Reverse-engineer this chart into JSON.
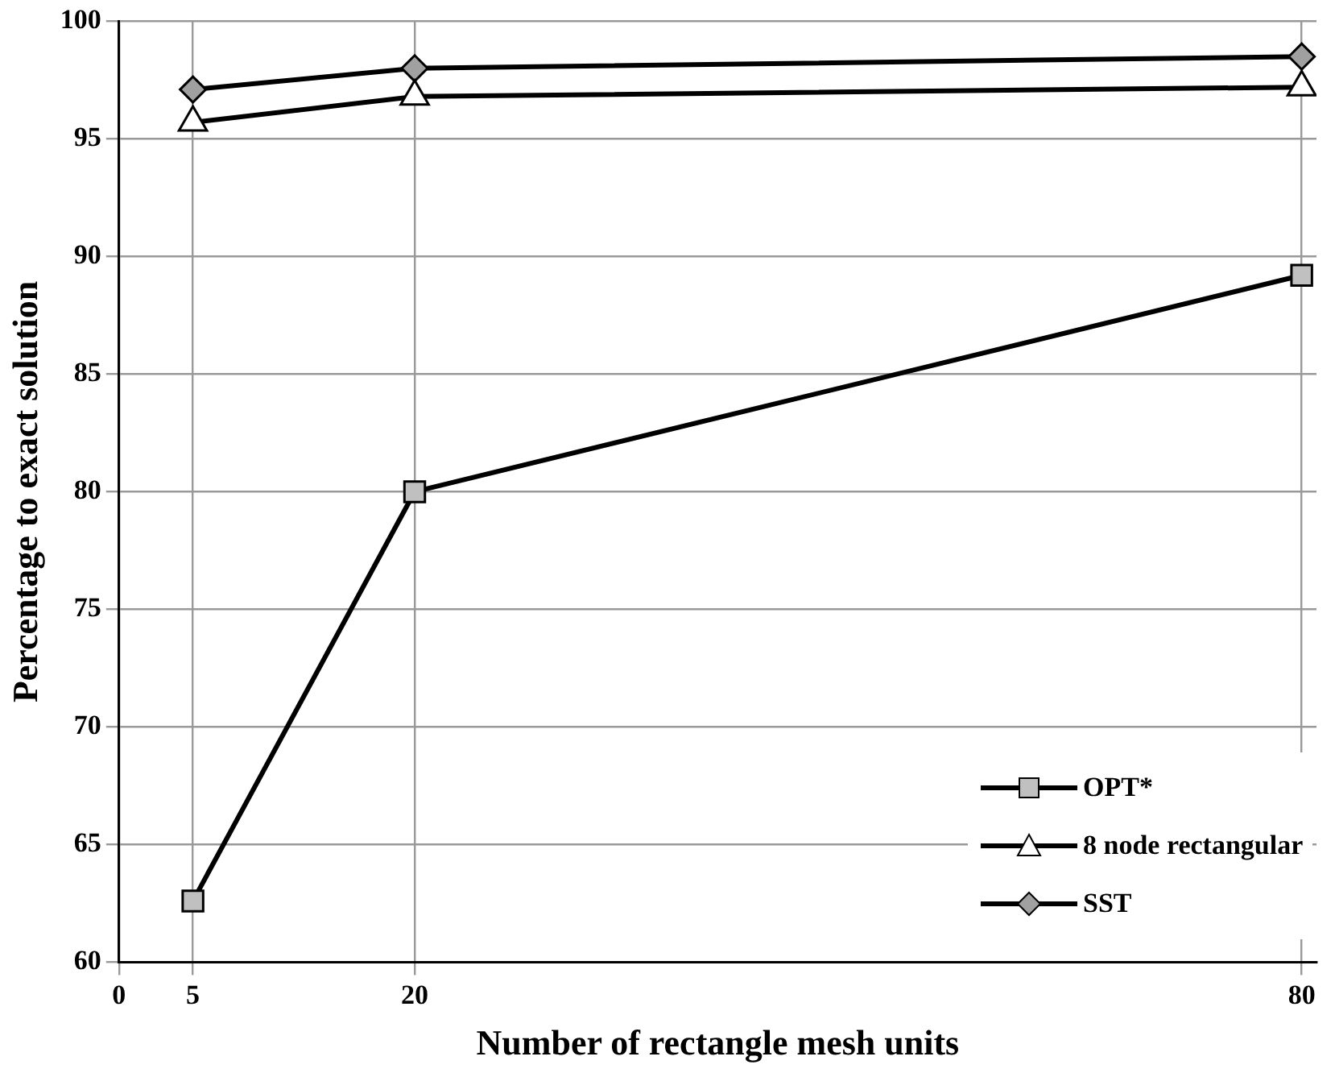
{
  "chart_data": {
    "type": "line",
    "xlabel": "Number of rectangle mesh units",
    "ylabel": "Percentage to exact solution",
    "x": [
      5,
      20,
      80
    ],
    "xlim": [
      0,
      81
    ],
    "xticks": [
      0,
      5,
      20,
      80
    ],
    "ylim": [
      60,
      100
    ],
    "yticks": [
      60,
      65,
      70,
      75,
      80,
      85,
      90,
      95,
      100
    ],
    "series": [
      {
        "name": "OPT*",
        "color": "#c0c0c0",
        "marker": "square",
        "values": [
          62.6,
          80,
          89.2
        ]
      },
      {
        "name": "8 node rectangular",
        "color": "#ffffff",
        "marker": "triangle",
        "values": [
          95.7,
          96.8,
          97.2
        ]
      },
      {
        "name": "SST",
        "color": "#a0a0a0",
        "marker": "diamond",
        "values": [
          97.1,
          98,
          98.5
        ]
      }
    ],
    "grid": true,
    "legend": "bottom right",
    "line_style": "solid"
  }
}
